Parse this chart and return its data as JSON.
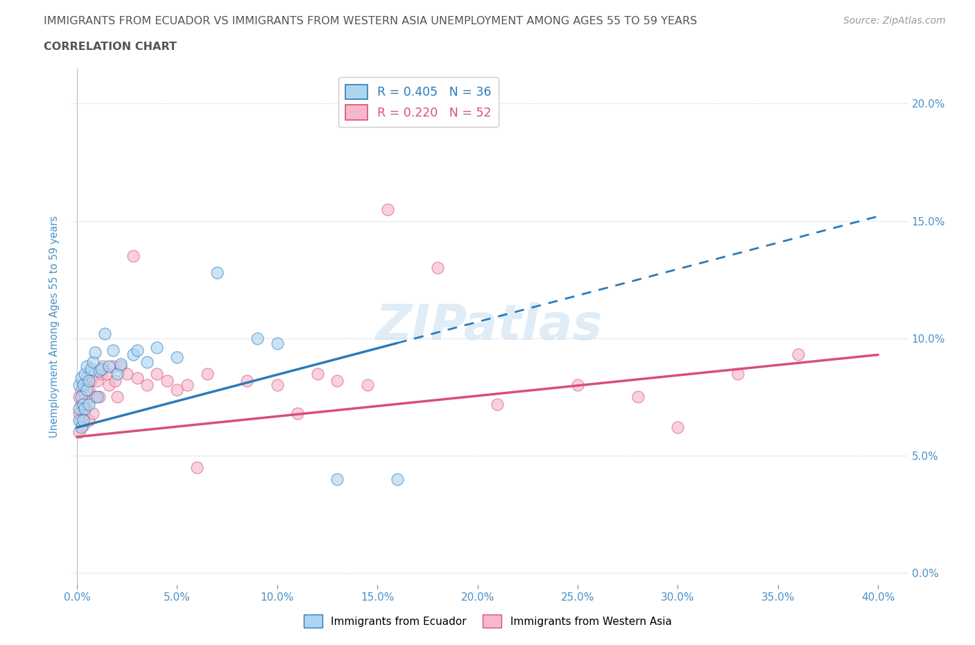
{
  "title_line1": "IMMIGRANTS FROM ECUADOR VS IMMIGRANTS FROM WESTERN ASIA UNEMPLOYMENT AMONG AGES 55 TO 59 YEARS",
  "title_line2": "CORRELATION CHART",
  "source": "Source: ZipAtlas.com",
  "xlabel_ticks": [
    0.0,
    0.05,
    0.1,
    0.15,
    0.2,
    0.25,
    0.3,
    0.35,
    0.4
  ],
  "ylabel_ticks": [
    0.0,
    0.05,
    0.1,
    0.15,
    0.2
  ],
  "xlim": [
    -0.003,
    0.415
  ],
  "ylim": [
    -0.005,
    0.215
  ],
  "watermark": "ZIPatlas",
  "legend_box_blue": "#aed4f0",
  "legend_box_pink": "#f7b8cb",
  "legend_text_color": "#2b7bba",
  "legend_text_pink": "#d94f7a",
  "axis_label_color": "#4a90c4",
  "tick_color": "#4a90c4",
  "title_color": "#555555",
  "grid_color": "#e0e0e0",
  "background_color": "#ffffff",
  "ecuador_R": 0.405,
  "ecuador_N": 36,
  "wasia_R": 0.22,
  "wasia_N": 52,
  "ecuador_trend_start_x": 0.0,
  "ecuador_trend_start_y": 0.062,
  "ecuador_trend_solid_end_x": 0.16,
  "ecuador_trend_solid_end_y": 0.098,
  "ecuador_trend_dash_end_x": 0.4,
  "ecuador_trend_dash_end_y": 0.138,
  "wasia_trend_start_x": 0.0,
  "wasia_trend_start_y": 0.058,
  "wasia_trend_end_x": 0.4,
  "wasia_trend_end_y": 0.093,
  "ecuador_x": [
    0.001,
    0.001,
    0.001,
    0.002,
    0.002,
    0.002,
    0.003,
    0.003,
    0.003,
    0.004,
    0.004,
    0.005,
    0.005,
    0.006,
    0.006,
    0.007,
    0.008,
    0.009,
    0.01,
    0.011,
    0.012,
    0.014,
    0.016,
    0.018,
    0.02,
    0.022,
    0.028,
    0.03,
    0.035,
    0.04,
    0.05,
    0.07,
    0.09,
    0.1,
    0.13,
    0.16
  ],
  "ecuador_y": [
    0.065,
    0.07,
    0.08,
    0.062,
    0.075,
    0.083,
    0.072,
    0.065,
    0.08,
    0.085,
    0.07,
    0.078,
    0.088,
    0.082,
    0.072,
    0.087,
    0.09,
    0.094,
    0.075,
    0.086,
    0.087,
    0.102,
    0.088,
    0.095,
    0.085,
    0.089,
    0.093,
    0.095,
    0.09,
    0.096,
    0.092,
    0.128,
    0.1,
    0.098,
    0.04,
    0.04
  ],
  "wasia_x": [
    0.001,
    0.001,
    0.001,
    0.002,
    0.002,
    0.002,
    0.003,
    0.003,
    0.003,
    0.004,
    0.004,
    0.005,
    0.005,
    0.006,
    0.006,
    0.007,
    0.008,
    0.009,
    0.01,
    0.011,
    0.012,
    0.013,
    0.015,
    0.016,
    0.018,
    0.019,
    0.02,
    0.022,
    0.025,
    0.028,
    0.03,
    0.035,
    0.04,
    0.045,
    0.05,
    0.055,
    0.06,
    0.065,
    0.085,
    0.1,
    0.11,
    0.12,
    0.13,
    0.145,
    0.155,
    0.18,
    0.21,
    0.25,
    0.28,
    0.3,
    0.33,
    0.36
  ],
  "wasia_y": [
    0.06,
    0.068,
    0.075,
    0.065,
    0.072,
    0.078,
    0.063,
    0.07,
    0.08,
    0.068,
    0.076,
    0.073,
    0.083,
    0.065,
    0.078,
    0.082,
    0.068,
    0.075,
    0.082,
    0.075,
    0.085,
    0.088,
    0.085,
    0.08,
    0.088,
    0.082,
    0.075,
    0.088,
    0.085,
    0.135,
    0.083,
    0.08,
    0.085,
    0.082,
    0.078,
    0.08,
    0.045,
    0.085,
    0.082,
    0.08,
    0.068,
    0.085,
    0.082,
    0.08,
    0.155,
    0.13,
    0.072,
    0.08,
    0.075,
    0.062,
    0.085,
    0.093
  ]
}
